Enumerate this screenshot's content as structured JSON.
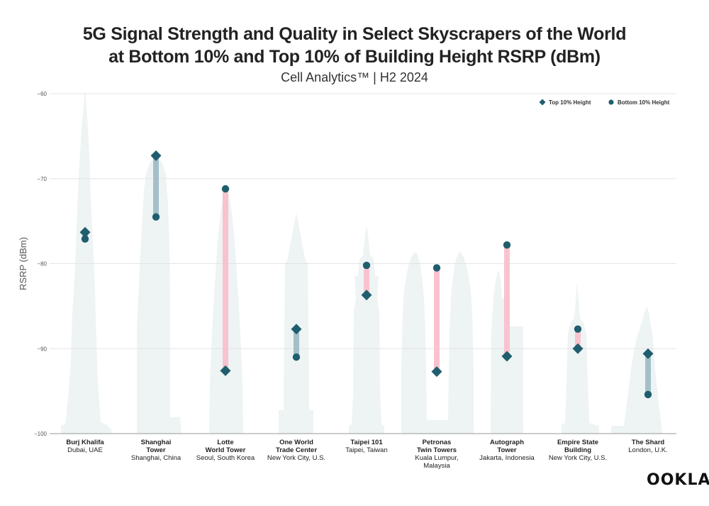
{
  "title_line1": "5G Signal Strength and Quality in Select Skyscrapers of the World",
  "title_line2": "at Bottom 10% and Top 10% of Building Height RSRP (dBm)",
  "subtitle": "Cell Analytics™ | H2 2024",
  "logo_text": "OOKLA",
  "chart_data": {
    "type": "dumbbell",
    "ylabel": "RSRP (dBm)",
    "ylim": [
      -100,
      -60
    ],
    "yticks": [
      -60,
      -70,
      -80,
      -90,
      -100
    ],
    "grid": true,
    "legend_position": "top-right",
    "legend": [
      "Top 10% Height",
      "Bottom 10% Height"
    ],
    "categories": [
      {
        "name": [
          "Burj Khalifa"
        ],
        "location": [
          "Dubai, UAE"
        ],
        "top": -76.3,
        "bottom": -77.1
      },
      {
        "name": [
          "Shanghai",
          "Tower"
        ],
        "location": [
          "Shanghai, China"
        ],
        "top": -67.3,
        "bottom": -74.5
      },
      {
        "name": [
          "Lotte",
          "World Tower"
        ],
        "location": [
          "Seoul, South Korea"
        ],
        "top": -92.6,
        "bottom": -71.2
      },
      {
        "name": [
          "One World",
          "Trade Center"
        ],
        "location": [
          "New York City, U.S."
        ],
        "top": -87.7,
        "bottom": -91.0
      },
      {
        "name": [
          "Taipei 101"
        ],
        "location": [
          "Taipei, Taiwan"
        ],
        "top": -83.7,
        "bottom": -80.2
      },
      {
        "name": [
          "Petronas",
          "Twin Towers"
        ],
        "location": [
          "Kuala Lumpur,",
          "Malaysia"
        ],
        "top": -92.7,
        "bottom": -80.5
      },
      {
        "name": [
          "Autograph",
          "Tower"
        ],
        "location": [
          "Jakarta, Indonesia"
        ],
        "top": -90.9,
        "bottom": -77.8
      },
      {
        "name": [
          "Empire State",
          "Building"
        ],
        "location": [
          "New York City, U.S."
        ],
        "top": -90.0,
        "bottom": -87.7
      },
      {
        "name": [
          "The Shard"
        ],
        "location": [
          "London, U.K."
        ],
        "top": -90.6,
        "bottom": -95.4
      }
    ],
    "colors": {
      "marker": "#1f5e6e",
      "bar_improve": "#f8c3cf",
      "bar_decline": "#a4bfc8",
      "silhouette": "#eef3f4",
      "grid": "#e4e4e4",
      "axis": "#999999"
    }
  }
}
